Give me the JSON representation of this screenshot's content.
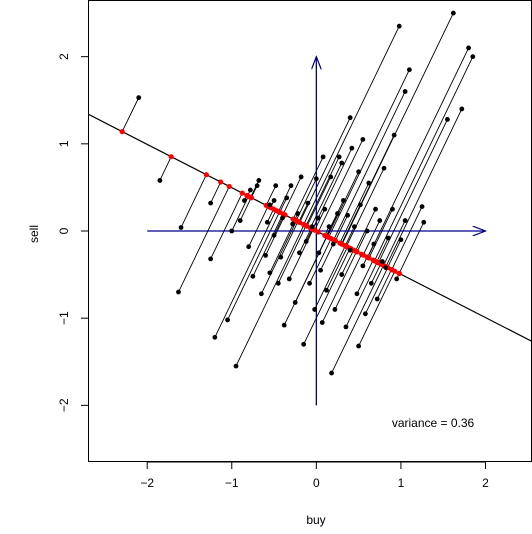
{
  "chart_data": {
    "type": "scatter",
    "title": "",
    "xlabel": "buy",
    "ylabel": "sell",
    "xlim": [
      -2.7,
      2.55
    ],
    "ylim": [
      -2.65,
      2.65
    ],
    "x_ticks": [
      {
        "value": -2,
        "label": "−2"
      },
      {
        "value": -1,
        "label": "−1"
      },
      {
        "value": 0,
        "label": "0"
      },
      {
        "value": 1,
        "label": "1"
      },
      {
        "value": 2,
        "label": "2"
      }
    ],
    "y_ticks": [
      {
        "value": -2,
        "label": "−2"
      },
      {
        "value": -1,
        "label": "−1"
      },
      {
        "value": 0,
        "label": "0"
      },
      {
        "value": 1,
        "label": "1"
      },
      {
        "value": 2,
        "label": "2"
      }
    ],
    "grid": false,
    "annotation": "variance = 0.36",
    "annotation_at": [
      1.38,
      -2.2
    ],
    "colors": {
      "points": "#000000",
      "projections": "#ff0000",
      "arrows": "#00008b",
      "line": "#000000"
    },
    "principal_direction": [
      -0.896,
      0.445
    ],
    "arrows": [
      {
        "from": [
          0,
          -2
        ],
        "to": [
          0,
          2
        ]
      },
      {
        "from": [
          -2,
          0
        ],
        "to": [
          2,
          0
        ]
      }
    ],
    "points": [
      [
        -2.1,
        1.53
      ],
      [
        -1.85,
        0.58
      ],
      [
        -1.6,
        0.04
      ],
      [
        -1.63,
        -0.7
      ],
      [
        -1.25,
        0.32
      ],
      [
        -1.25,
        -0.32
      ],
      [
        -1.2,
        -1.22
      ],
      [
        -1.05,
        -1.02
      ],
      [
        -1.0,
        0.0
      ],
      [
        -0.95,
        -1.55
      ],
      [
        -0.9,
        0.12
      ],
      [
        -0.85,
        0.35
      ],
      [
        -0.8,
        -0.18
      ],
      [
        -0.78,
        0.47
      ],
      [
        -0.75,
        -0.52
      ],
      [
        -0.7,
        0.52
      ],
      [
        -0.68,
        0.58
      ],
      [
        -0.65,
        -0.72
      ],
      [
        -0.6,
        -0.28
      ],
      [
        -0.58,
        0.1
      ],
      [
        -0.55,
        -0.48
      ],
      [
        -0.55,
        0.3
      ],
      [
        -0.5,
        0.35
      ],
      [
        -0.5,
        -0.05
      ],
      [
        -0.48,
        0.52
      ],
      [
        -0.45,
        -0.6
      ],
      [
        -0.42,
        -0.3
      ],
      [
        -0.4,
        0.15
      ],
      [
        -0.38,
        -1.08
      ],
      [
        -0.35,
        0.38
      ],
      [
        -0.32,
        -0.55
      ],
      [
        -0.3,
        0.52
      ],
      [
        -0.28,
        0.08
      ],
      [
        -0.25,
        -0.82
      ],
      [
        -0.22,
        0.2
      ],
      [
        -0.2,
        -0.25
      ],
      [
        -0.18,
        0.62
      ],
      [
        -0.15,
        -1.3
      ],
      [
        -0.12,
        -0.12
      ],
      [
        -0.1,
        0.32
      ],
      [
        -0.08,
        -0.6
      ],
      [
        -0.05,
        0.05
      ],
      [
        -0.02,
        -0.9
      ],
      [
        0.0,
        0.6
      ],
      [
        0.02,
        0.15
      ],
      [
        0.03,
        -0.25
      ],
      [
        0.05,
        -0.45
      ],
      [
        0.07,
        -1.05
      ],
      [
        0.08,
        0.85
      ],
      [
        0.1,
        0.25
      ],
      [
        0.12,
        -0.68
      ],
      [
        0.15,
        0.05
      ],
      [
        0.17,
        0.62
      ],
      [
        0.18,
        -1.63
      ],
      [
        0.2,
        -0.15
      ],
      [
        0.22,
        -0.9
      ],
      [
        0.25,
        0.2
      ],
      [
        0.27,
        0.85
      ],
      [
        0.3,
        -0.5
      ],
      [
        0.32,
        0.35
      ],
      [
        0.35,
        -1.1
      ],
      [
        0.37,
        0.18
      ],
      [
        0.4,
        -0.22
      ],
      [
        0.42,
        0.95
      ],
      [
        0.45,
        0.05
      ],
      [
        0.48,
        -0.72
      ],
      [
        0.5,
        0.68
      ],
      [
        0.5,
        -1.32
      ],
      [
        0.52,
        0.3
      ],
      [
        0.55,
        -0.4
      ],
      [
        0.58,
        -0.95
      ],
      [
        0.6,
        0.0
      ],
      [
        0.62,
        0.55
      ],
      [
        0.65,
        -0.6
      ],
      [
        0.68,
        -0.15
      ],
      [
        0.7,
        0.25
      ],
      [
        0.72,
        -0.78
      ],
      [
        0.75,
        0.12
      ],
      [
        0.78,
        -0.35
      ],
      [
        0.8,
        0.72
      ],
      [
        0.82,
        -0.42
      ],
      [
        0.85,
        -0.08
      ],
      [
        0.9,
        0.25
      ],
      [
        0.95,
        -0.55
      ],
      [
        1.0,
        -0.1
      ],
      [
        1.05,
        0.12
      ],
      [
        1.25,
        0.28
      ],
      [
        1.27,
        0.1
      ],
      [
        1.85,
        2.0
      ],
      [
        1.62,
        2.5
      ],
      [
        1.8,
        2.1
      ],
      [
        1.72,
        1.4
      ],
      [
        1.55,
        1.28
      ],
      [
        1.1,
        1.85
      ],
      [
        0.98,
        2.35
      ],
      [
        1.05,
        1.6
      ],
      [
        0.92,
        1.1
      ],
      [
        0.4,
        1.3
      ],
      [
        0.55,
        1.05
      ],
      [
        0.3,
        0.78
      ]
    ]
  }
}
